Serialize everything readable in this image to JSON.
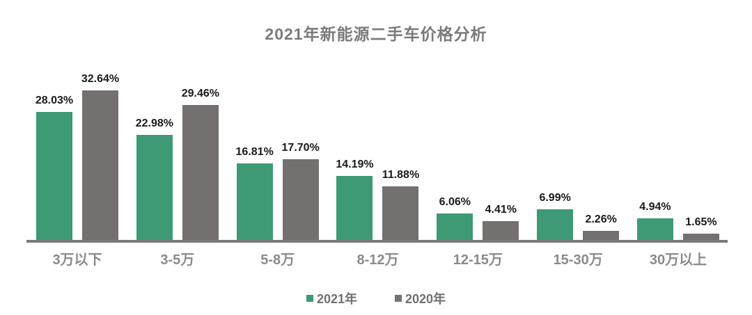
{
  "title": "2021年新能源二手车价格分析",
  "colors": {
    "background": "#ffffff",
    "axis": "#7e7979",
    "title_text": "#7b7b7b",
    "category_text": "#8a8a8a",
    "value_label_text": "#1a1a1a",
    "legend_text": "#6f6f6f",
    "series_2021": "#3d9a74",
    "series_2020": "#757070"
  },
  "chart_data": {
    "type": "bar",
    "title": "2021年新能源二手车价格分析",
    "categories": [
      "3万以下",
      "3-5万",
      "5-8万",
      "8-12万",
      "12-15万",
      "15-30万",
      "30万以上"
    ],
    "series": [
      {
        "name": "2021年",
        "color": "#3d9a74",
        "values": [
          28.03,
          22.98,
          16.81,
          14.19,
          6.06,
          6.99,
          4.94
        ],
        "labels": [
          "28.03%",
          "22.98%",
          "16.81%",
          "14.19%",
          "6.06%",
          "6.99%",
          "4.94%"
        ]
      },
      {
        "name": "2020年",
        "color": "#757070",
        "values": [
          32.64,
          29.46,
          17.7,
          11.88,
          4.41,
          2.26,
          1.65
        ],
        "labels": [
          "32.64%",
          "29.46%",
          "17.70%",
          "11.88%",
          "4.41%",
          "2.26%",
          "1.65%"
        ]
      }
    ],
    "value_suffix": "%",
    "xlabel": "",
    "ylabel": "",
    "ylim": [
      0,
      35
    ],
    "grid": false,
    "y_axis_visible": false,
    "legend_position": "bottom"
  }
}
